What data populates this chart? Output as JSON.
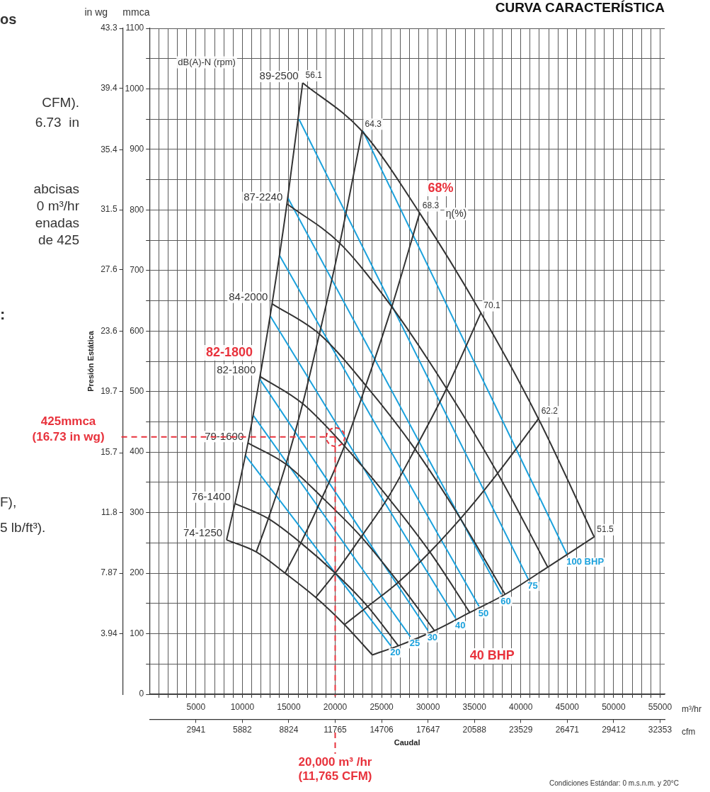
{
  "chart_data": {
    "type": "line",
    "title": "CURVA CARACTERÍSTICA",
    "xlabel": "Caudal",
    "y2label": "Presión Estática",
    "xlim": [
      0,
      55500
    ],
    "ylim": [
      0,
      1100
    ],
    "x2lim": [
      0,
      32647
    ],
    "y2lim": [
      0,
      43.3
    ],
    "xticks": [
      {
        "value": 1000,
        "label": null
      },
      {
        "value": 2000,
        "label": null
      },
      {
        "value": 3000,
        "label": null
      },
      {
        "value": 4000,
        "label": null
      },
      5000,
      {
        "value": 6000,
        "label": null
      },
      {
        "value": 7000,
        "label": null
      },
      {
        "value": 8000,
        "label": null
      },
      {
        "value": 9000,
        "label": null
      },
      10000,
      {
        "value": 11000,
        "label": null
      },
      {
        "value": 12000,
        "label": null
      },
      {
        "value": 13000,
        "label": null
      },
      {
        "value": 14000,
        "label": null
      },
      15000,
      {
        "value": 16000,
        "label": null
      },
      {
        "value": 17000,
        "label": null
      },
      {
        "value": 18000,
        "label": null
      },
      {
        "value": 19000,
        "label": null
      },
      20000,
      {
        "value": 21000,
        "label": null
      },
      {
        "value": 22000,
        "label": null
      },
      {
        "value": 23000,
        "label": null
      },
      {
        "value": 24000,
        "label": null
      },
      25000,
      {
        "value": 26000,
        "label": null
      },
      {
        "value": 27000,
        "label": null
      },
      {
        "value": 28000,
        "label": null
      },
      {
        "value": 29000,
        "label": null
      },
      30000,
      {
        "value": 31000,
        "label": null
      },
      {
        "value": 32000,
        "label": null
      },
      {
        "value": 33000,
        "label": null
      },
      {
        "value": 34000,
        "label": null
      },
      35000,
      {
        "value": 36000,
        "label": null
      },
      {
        "value": 37000,
        "label": null
      },
      {
        "value": 38000,
        "label": null
      },
      {
        "value": 39000,
        "label": null
      },
      40000,
      {
        "value": 41000,
        "label": null
      },
      {
        "value": 42000,
        "label": null
      },
      {
        "value": 43000,
        "label": null
      },
      {
        "value": 44000,
        "label": null
      },
      45000,
      {
        "value": 46000,
        "label": null
      },
      {
        "value": 47000,
        "label": null
      },
      {
        "value": 48000,
        "label": null
      },
      {
        "value": 49000,
        "label": null
      },
      50000,
      {
        "value": 51000,
        "label": null
      },
      {
        "value": 52000,
        "label": null
      },
      {
        "value": 53000,
        "label": null
      },
      {
        "value": 54000,
        "label": null
      },
      55000
    ],
    "x2ticks": [
      2941,
      5882,
      8824,
      11765,
      14706,
      17647,
      20588,
      23529,
      26471,
      29412,
      32353
    ],
    "yticks": [
      0,
      {
        "value": 50,
        "label": null
      },
      100,
      {
        "value": 150,
        "label": null
      },
      200,
      {
        "value": 250,
        "label": null
      },
      300,
      {
        "value": 350,
        "label": null
      },
      400,
      {
        "value": 450,
        "label": null
      },
      500,
      {
        "value": 550,
        "label": null
      },
      600,
      {
        "value": 650,
        "label": null
      },
      700,
      {
        "value": 750,
        "label": null
      },
      800,
      {
        "value": 850,
        "label": null
      },
      900,
      {
        "value": 950,
        "label": null
      },
      1000,
      {
        "value": 1050,
        "label": null
      },
      1100
    ],
    "y2ticks": [
      3.94,
      7.87,
      11.8,
      15.7,
      19.7,
      23.6,
      27.6,
      31.5,
      35.4,
      39.4,
      43.3
    ],
    "grid": true,
    "legend": false,
    "marker": "none",
    "series": [
      {
        "type": "line",
        "name": "89-2500",
        "color": "#333333",
        "x": [
          16500,
          22900,
          29100,
          35700,
          41900,
          47900
        ],
        "values": [
          1010,
          930,
          795,
          630,
          455,
          260
        ]
      },
      {
        "type": "line",
        "name": "87-2240",
        "color": "#333333",
        "x": [
          14800,
          20500,
          26100,
          32000,
          37500,
          42900
        ],
        "values": [
          810,
          745,
          640,
          505,
          365,
          210
        ]
      },
      {
        "type": "line",
        "name": "84-2000",
        "color": "#333333",
        "x": [
          13200,
          18300,
          23300,
          28600,
          33500,
          38300
        ],
        "values": [
          645,
          595,
          510,
          405,
          290,
          165
        ]
      },
      {
        "type": "line",
        "name": "82-1800",
        "color": "#333333",
        "x": [
          11900,
          16500,
          21000,
          25700,
          30200,
          34500
        ],
        "values": [
          525,
          480,
          410,
          325,
          235,
          135
        ]
      },
      {
        "type": "line",
        "name": "79-1600",
        "color": "#333333",
        "x": [
          10600,
          14700,
          18600,
          22800,
          26800,
          30700
        ],
        "values": [
          415,
          380,
          325,
          260,
          185,
          105
        ]
      },
      {
        "type": "line",
        "name": "76-1400",
        "color": "#333333",
        "x": [
          9200,
          12800,
          16300,
          20000,
          23500,
          26800
        ],
        "values": [
          315,
          290,
          250,
          200,
          145,
          80
        ]
      },
      {
        "type": "line",
        "name": "74-1250",
        "color": "#333333",
        "x": [
          8300,
          11500,
          14600,
          17900,
          21000,
          24000
        ],
        "values": [
          255,
          235,
          200,
          160,
          115,
          65
        ]
      },
      {
        "type": "line",
        "name": "56.1",
        "color": "#333333",
        "x": [
          16500,
          14800,
          13200,
          11900,
          10600,
          9200,
          8300
        ],
        "values": [
          1010,
          810,
          645,
          525,
          415,
          315,
          255
        ]
      },
      {
        "type": "line",
        "name": "64.3",
        "color": "#333333",
        "x": [
          22900,
          20500,
          18300,
          16500,
          14700,
          12800,
          11500
        ],
        "values": [
          930,
          745,
          595,
          480,
          380,
          290,
          235
        ]
      },
      {
        "type": "line",
        "name": "68.3",
        "color": "#333333",
        "x": [
          29100,
          26100,
          23300,
          21000,
          18600,
          16300,
          14600
        ],
        "values": [
          795,
          640,
          510,
          410,
          325,
          250,
          200
        ]
      },
      {
        "type": "line",
        "name": "70.1",
        "color": "#333333",
        "x": [
          35700,
          32000,
          28600,
          25700,
          22800,
          20000,
          17900
        ],
        "values": [
          630,
          505,
          405,
          325,
          260,
          200,
          160
        ]
      },
      {
        "type": "line",
        "name": "62.2",
        "color": "#333333",
        "x": [
          41900,
          37500,
          33500,
          30200,
          26800,
          23500,
          21000
        ],
        "values": [
          455,
          365,
          290,
          235,
          185,
          145,
          115
        ]
      },
      {
        "type": "line",
        "name": "51.5",
        "color": "#333333",
        "x": [
          47900,
          42900,
          38300,
          34500,
          30700,
          26800,
          24000
        ],
        "values": [
          260,
          210,
          165,
          135,
          105,
          80,
          65
        ]
      },
      {
        "type": "line",
        "name": "100 BHP",
        "color": "#1ba1dc",
        "x": [
          45000,
          23000
        ],
        "values": [
          230,
          930
        ]
      },
      {
        "type": "line",
        "name": "75",
        "color": "#1ba1dc",
        "x": [
          40800,
          16100
        ],
        "values": [
          190,
          950
        ]
      },
      {
        "type": "line",
        "name": "60",
        "color": "#1ba1dc",
        "x": [
          37900,
          14900
        ],
        "values": [
          165,
          820
        ]
      },
      {
        "type": "line",
        "name": "50",
        "color": "#1ba1dc",
        "x": [
          35500,
          14000
        ],
        "values": [
          145,
          725
        ]
      },
      {
        "type": "line",
        "name": "40",
        "color": "#1ba1dc",
        "x": [
          33000,
          13000
        ],
        "values": [
          125,
          625
        ]
      },
      {
        "type": "line",
        "name": "30",
        "color": "#1ba1dc",
        "x": [
          30000,
          11900
        ],
        "values": [
          105,
          520
        ]
      },
      {
        "type": "line",
        "name": "25",
        "color": "#1ba1dc",
        "x": [
          28100,
          11200
        ],
        "values": [
          95,
          460
        ]
      },
      {
        "type": "line",
        "name": "20",
        "color": "#1ba1dc",
        "x": [
          26000,
          10300
        ],
        "values": [
          80,
          395
        ]
      }
    ],
    "ref_lines": [
      {
        "axis": "y",
        "value": 425,
        "label": "425mmca (16.73 in wg)",
        "color": "#e8323c",
        "line_style": "dashed"
      },
      {
        "axis": "x",
        "value": 20000,
        "label": "20,000 m³ /hr (11,765 CFM)",
        "color": "#e8323c",
        "line_style": "dashed"
      }
    ],
    "annotations": [
      "in wg",
      "mmca",
      "m³/hr",
      "cfm",
      "dB(A)-N (rpm)",
      "η(%)",
      "Condiciones Estándar: 0 m.s.n.m. y 20°C",
      "os",
      "CFM).",
      "6.73  in",
      "abcisas",
      "0 m³/hr",
      "enadas",
      "de 425",
      ":",
      "F),",
      "5 lb/ft³).",
      "68%",
      "82-1800",
      "40 BHP"
    ]
  }
}
